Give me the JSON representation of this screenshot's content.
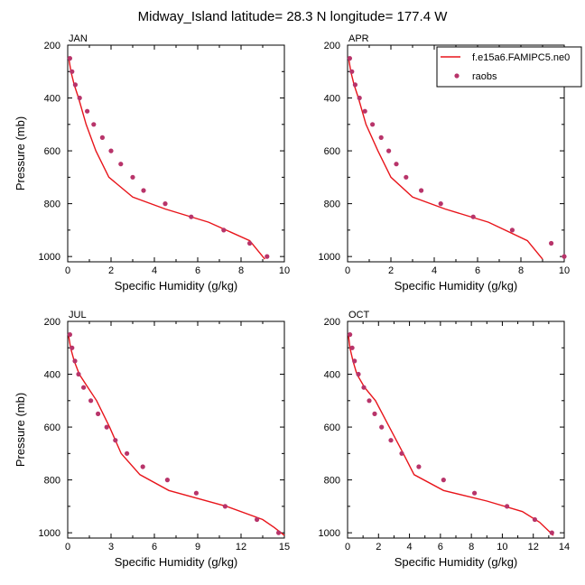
{
  "figure_title": "Midway_Island  latitude= 28.3 N longitude= 177.4 W",
  "legend": {
    "model_label": "f.e15a6.FAMIPC5.ne0",
    "obs_label": "raobs"
  },
  "colors": {
    "model_line": "#e8151b",
    "obs_marker": "#b8346a",
    "axes": "#000000"
  },
  "chart_data": [
    {
      "type": "line",
      "panel": "JAN",
      "xlabel": "Specific Humidity (g/kg)",
      "ylabel": "Pressure (mb)",
      "xlim": [
        0,
        10
      ],
      "ylim": [
        1020,
        200
      ],
      "x_ticks": [
        0,
        2,
        4,
        6,
        8,
        10
      ],
      "y_ticks": [
        200,
        400,
        600,
        800,
        1000
      ],
      "series": [
        {
          "kind": "line",
          "x": [
            0.05,
            0.15,
            0.3,
            0.5,
            0.85,
            1.3,
            1.9,
            3.0,
            4.5,
            6.5,
            8.4,
            9.1
          ],
          "y": [
            250,
            300,
            350,
            400,
            500,
            600,
            700,
            775,
            820,
            870,
            940,
            1010
          ]
        },
        {
          "kind": "markers",
          "x": [
            0.1,
            0.2,
            0.35,
            0.55,
            0.9,
            1.2,
            1.6,
            2.0,
            2.45,
            3.0,
            3.5,
            4.5,
            5.7,
            7.2,
            8.4,
            9.2
          ],
          "y": [
            250,
            300,
            350,
            400,
            450,
            500,
            550,
            600,
            650,
            700,
            750,
            800,
            850,
            900,
            950,
            1000
          ]
        }
      ]
    },
    {
      "type": "line",
      "panel": "APR",
      "xlabel": "Specific Humidity (g/kg)",
      "ylabel": "",
      "xlim": [
        0,
        10
      ],
      "ylim": [
        1020,
        200
      ],
      "x_ticks": [
        0,
        2,
        4,
        6,
        8,
        10
      ],
      "y_ticks": [
        200,
        400,
        600,
        800,
        1000
      ],
      "series": [
        {
          "kind": "line",
          "x": [
            0.05,
            0.15,
            0.3,
            0.5,
            0.85,
            1.4,
            2.0,
            3.0,
            4.5,
            6.5,
            8.3,
            9.0
          ],
          "y": [
            250,
            300,
            350,
            400,
            500,
            600,
            700,
            775,
            820,
            870,
            940,
            1010
          ]
        },
        {
          "kind": "markers",
          "x": [
            0.1,
            0.2,
            0.35,
            0.55,
            0.8,
            1.15,
            1.55,
            1.9,
            2.25,
            2.7,
            3.4,
            4.3,
            5.8,
            7.6,
            9.4,
            10.0
          ],
          "y": [
            250,
            300,
            350,
            400,
            450,
            500,
            550,
            600,
            650,
            700,
            750,
            800,
            850,
            900,
            950,
            1000
          ]
        }
      ]
    },
    {
      "type": "line",
      "panel": "JUL",
      "xlabel": "Specific Humidity (g/kg)",
      "ylabel": "Pressure (mb)",
      "xlim": [
        0,
        15
      ],
      "ylim": [
        1020,
        200
      ],
      "x_ticks": [
        0,
        3,
        6,
        9,
        12,
        15
      ],
      "y_ticks": [
        200,
        400,
        600,
        800,
        1000
      ],
      "series": [
        {
          "kind": "line",
          "x": [
            0.05,
            0.2,
            0.45,
            0.8,
            1.4,
            2.0,
            2.9,
            3.7,
            5.0,
            7.0,
            11.0,
            13.5,
            14.3,
            15.0
          ],
          "y": [
            250,
            300,
            350,
            400,
            450,
            500,
            600,
            700,
            780,
            840,
            900,
            950,
            980,
            1010
          ]
        },
        {
          "kind": "markers",
          "x": [
            0.15,
            0.3,
            0.5,
            0.75,
            1.1,
            1.6,
            2.1,
            2.7,
            3.3,
            4.1,
            5.2,
            6.9,
            8.9,
            10.9,
            13.1,
            14.6
          ],
          "y": [
            250,
            300,
            350,
            400,
            450,
            500,
            550,
            600,
            650,
            700,
            750,
            800,
            850,
            900,
            950,
            1000
          ]
        }
      ]
    },
    {
      "type": "line",
      "panel": "OCT",
      "xlabel": "Specific Humidity (g/kg)",
      "ylabel": "",
      "xlim": [
        0,
        14
      ],
      "ylim": [
        1020,
        200
      ],
      "x_ticks": [
        0,
        2,
        4,
        6,
        8,
        10,
        12,
        14
      ],
      "y_ticks": [
        200,
        400,
        600,
        800,
        1000
      ],
      "series": [
        {
          "kind": "line",
          "x": [
            0.05,
            0.15,
            0.35,
            0.6,
            1.1,
            1.8,
            2.7,
            3.6,
            4.3,
            6.2,
            9.0,
            11.3,
            12.4,
            13.3
          ],
          "y": [
            250,
            300,
            350,
            400,
            450,
            500,
            600,
            700,
            780,
            840,
            880,
            920,
            960,
            1010
          ]
        },
        {
          "kind": "markers",
          "x": [
            0.15,
            0.3,
            0.45,
            0.7,
            1.05,
            1.4,
            1.75,
            2.2,
            2.8,
            3.5,
            4.6,
            6.2,
            8.2,
            10.3,
            12.1,
            13.2
          ],
          "y": [
            250,
            300,
            350,
            400,
            450,
            500,
            550,
            600,
            650,
            700,
            750,
            800,
            850,
            900,
            950,
            1000
          ]
        }
      ]
    }
  ]
}
